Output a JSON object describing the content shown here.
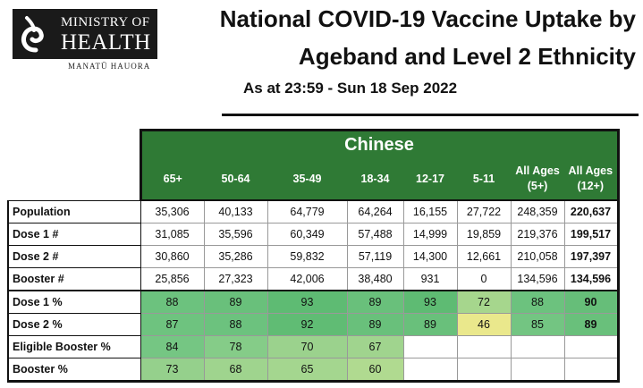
{
  "logo": {
    "line1": "MINISTRY OF",
    "line2": "HEALTH",
    "sub": "MANATŪ HAUORA"
  },
  "title": {
    "line1": "National COVID-19 Vaccine Uptake by",
    "line2": "Ageband and Level 2 Ethnicity",
    "as_at": "As at 23:59   -   Sun 18 Sep 2022"
  },
  "table": {
    "group": "Chinese",
    "columns": [
      [
        "65+"
      ],
      [
        "50-64"
      ],
      [
        "35-49"
      ],
      [
        "18-34"
      ],
      [
        "12-17"
      ],
      [
        "5-11"
      ],
      [
        "All Ages",
        "(5+)"
      ],
      [
        "All Ages",
        "(12+)"
      ]
    ],
    "rows": [
      {
        "label": "Population",
        "values": [
          "35,306",
          "40,133",
          "64,779",
          "64,264",
          "16,155",
          "27,722",
          "248,359",
          "220,637"
        ],
        "colors": [
          "",
          "",
          "",
          "",
          "",
          "",
          "",
          ""
        ]
      },
      {
        "label": "Dose 1 #",
        "values": [
          "31,085",
          "35,596",
          "60,349",
          "57,488",
          "14,999",
          "19,859",
          "219,376",
          "199,517"
        ],
        "colors": [
          "",
          "",
          "",
          "",
          "",
          "",
          "",
          ""
        ]
      },
      {
        "label": "Dose 2 #",
        "values": [
          "30,860",
          "35,286",
          "59,832",
          "57,119",
          "14,300",
          "12,661",
          "210,058",
          "197,397"
        ],
        "colors": [
          "",
          "",
          "",
          "",
          "",
          "",
          "",
          ""
        ]
      },
      {
        "label": "Booster #",
        "values": [
          "25,856",
          "27,323",
          "42,006",
          "38,480",
          "931",
          "0",
          "134,596",
          "134,596"
        ],
        "colors": [
          "",
          "",
          "",
          "",
          "",
          "",
          "",
          ""
        ]
      },
      {
        "label": "Dose 1 %",
        "values": [
          "88",
          "89",
          "93",
          "89",
          "93",
          "72",
          "88",
          "90"
        ],
        "colors": [
          "#6cc27e",
          "#69c07b",
          "#5ebb73",
          "#69c07b",
          "#5ebb73",
          "#a6d68d",
          "#6cc27e",
          "#66be79"
        ]
      },
      {
        "label": "Dose 2 %",
        "values": [
          "87",
          "88",
          "92",
          "89",
          "89",
          "46",
          "85",
          "89"
        ],
        "colors": [
          "#6ec37f",
          "#6cc27e",
          "#60bc74",
          "#69c07b",
          "#69c07b",
          "#eae88c",
          "#73c582",
          "#69c07b"
        ]
      },
      {
        "label": "Eligible Booster %",
        "values": [
          "84",
          "78",
          "70",
          "67",
          "",
          "",
          "",
          ""
        ],
        "colors": [
          "#75c683",
          "#85cc88",
          "#9bd28d",
          "#a0d48e",
          "",
          "",
          "",
          ""
        ]
      },
      {
        "label": "Booster %",
        "values": [
          "73",
          "68",
          "65",
          "60",
          "",
          "",
          "",
          ""
        ],
        "colors": [
          "#95d08c",
          "#9fd48e",
          "#a4d68f",
          "#b0da90",
          "",
          "",
          "",
          ""
        ]
      }
    ]
  }
}
